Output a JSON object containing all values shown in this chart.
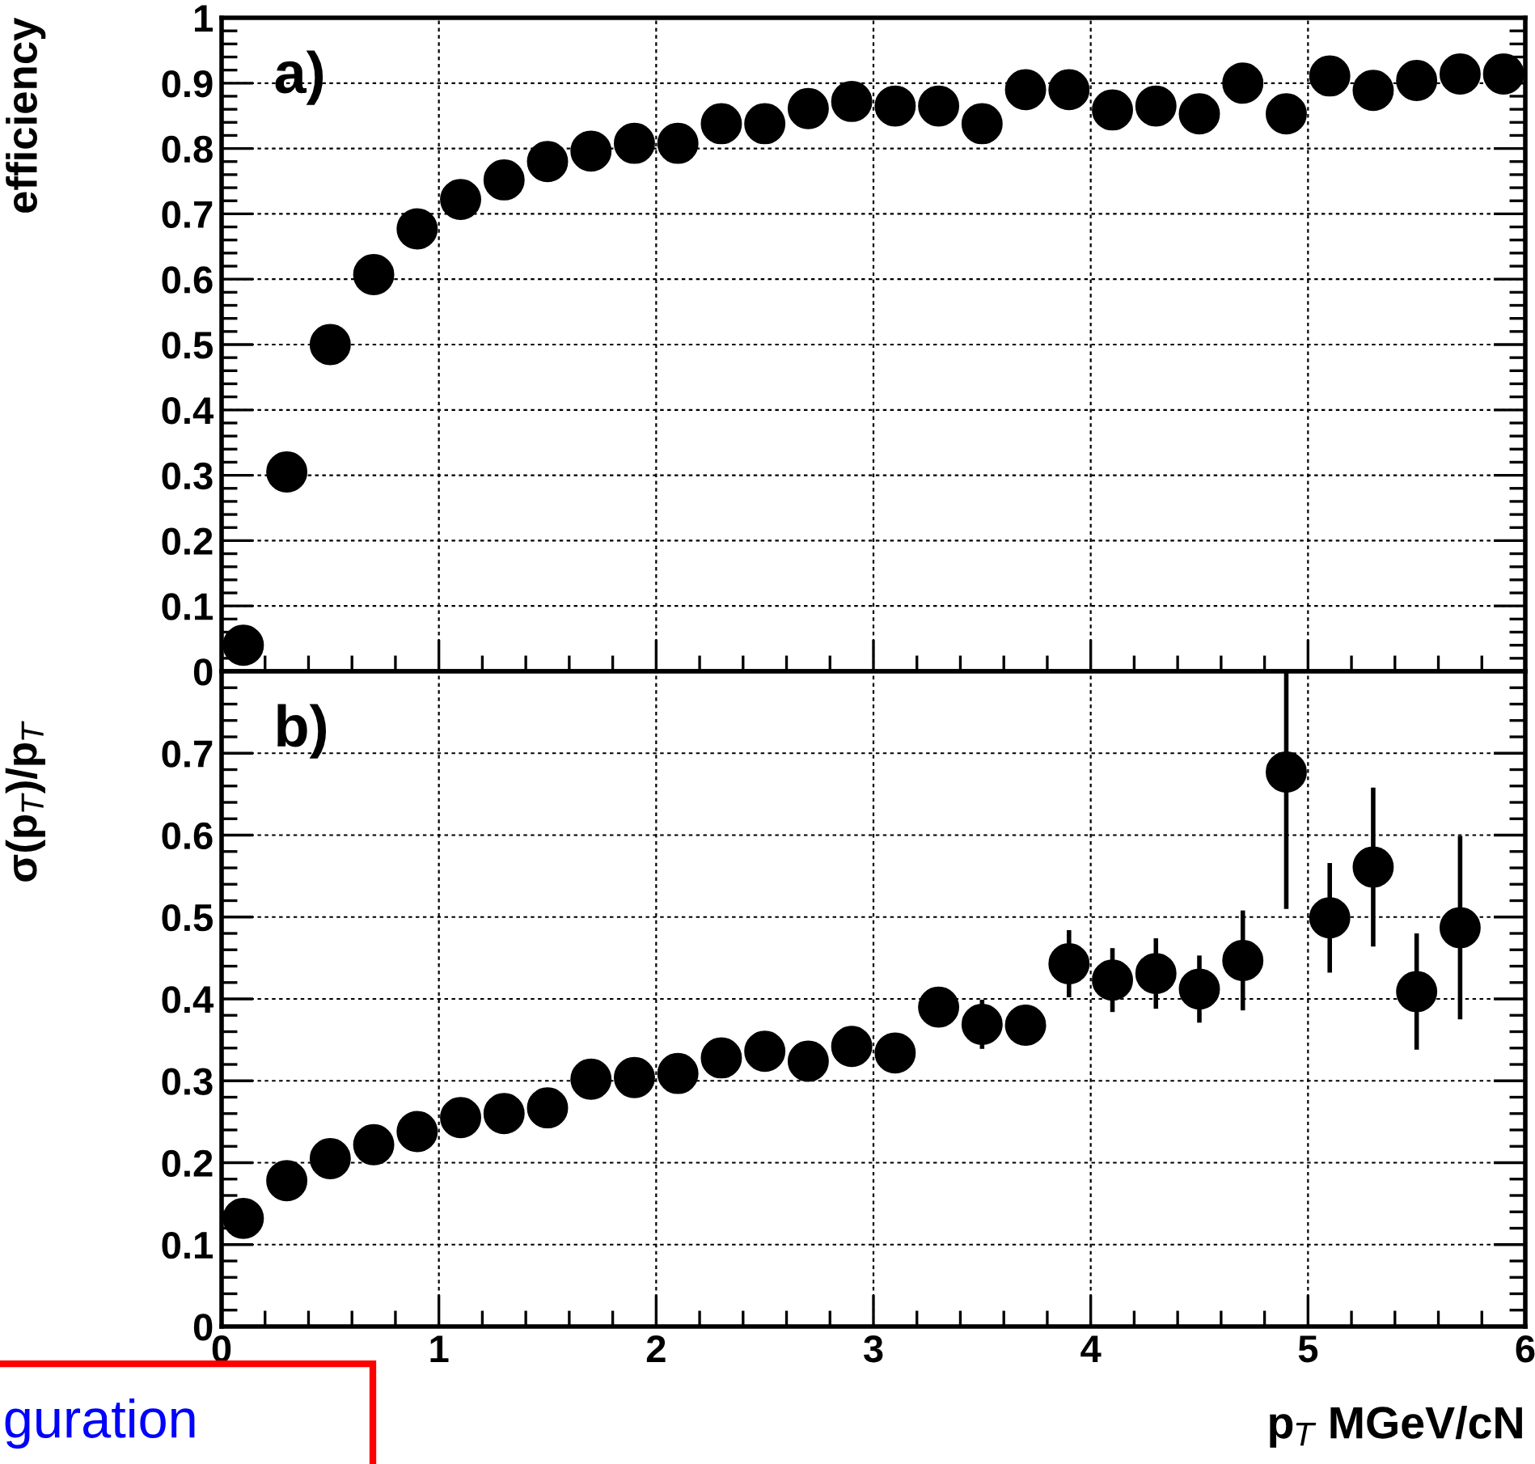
{
  "chart_data": [
    {
      "type": "scatter",
      "ylabel": "efficiency",
      "annotations": [
        "a)"
      ],
      "marker": "circle",
      "grid": true,
      "tick_labels": "y",
      "xlim": [
        0,
        6
      ],
      "xticks": [
        0,
        1,
        2,
        3,
        4,
        5,
        6
      ],
      "ylim": [
        0,
        1
      ],
      "yticks": [
        0,
        0.1,
        0.2,
        0.3,
        0.4,
        0.5,
        0.6,
        0.7,
        0.8,
        0.9,
        1
      ],
      "x": [
        0.1,
        0.3,
        0.5,
        0.7,
        0.9,
        1.1,
        1.3,
        1.5,
        1.7,
        1.9,
        2.1,
        2.3,
        2.5,
        2.7,
        2.9,
        3.1,
        3.3,
        3.5,
        3.7,
        3.9,
        4.1,
        4.3,
        4.5,
        4.7,
        4.9,
        5.1,
        5.3,
        5.5,
        5.7,
        5.9
      ],
      "series": [
        {
          "color": "#000000",
          "values": [
            0.04,
            0.305,
            0.5,
            0.607,
            0.677,
            0.722,
            0.752,
            0.78,
            0.796,
            0.808,
            0.808,
            0.838,
            0.838,
            0.861,
            0.872,
            0.865,
            0.865,
            0.838,
            0.89,
            0.89,
            0.859,
            0.865,
            0.853,
            0.9,
            0.853,
            0.911,
            0.889,
            0.904,
            0.914,
            0.914
          ],
          "errors": [
            null,
            null,
            null,
            null,
            null,
            null,
            null,
            null,
            null,
            null,
            null,
            null,
            null,
            null,
            null,
            null,
            null,
            null,
            null,
            null,
            null,
            null,
            0.02,
            0.02,
            0.025,
            0.015,
            0.025,
            0.02,
            0.02,
            0.025
          ]
        }
      ]
    },
    {
      "type": "scatter",
      "xlabel": "p$_{T}$ MGeV/cN",
      "ylabel": "σ(p$_{T}$)/p$_{T}$",
      "annotations": [
        "b)",
        "guration"
      ],
      "marker": "circle",
      "grid": true,
      "xlim": [
        0,
        6
      ],
      "xticks": [
        0,
        1,
        2,
        3,
        4,
        5,
        6
      ],
      "ylim": [
        0,
        0.8
      ],
      "yticks": [
        0,
        0.1,
        0.2,
        0.3,
        0.4,
        0.5,
        0.6,
        0.7,
        {
          "value": 0.8,
          "label": null
        }
      ],
      "x": [
        0.1,
        0.3,
        0.5,
        0.7,
        0.9,
        1.1,
        1.3,
        1.5,
        1.7,
        1.9,
        2.1,
        2.3,
        2.5,
        2.7,
        2.9,
        3.1,
        3.3,
        3.5,
        3.7,
        3.9,
        4.1,
        4.3,
        4.5,
        4.7,
        4.9,
        5.1,
        5.3,
        5.5,
        5.7
      ],
      "series": [
        {
          "color": "#000000",
          "values": [
            0.132,
            0.178,
            0.205,
            0.222,
            0.238,
            0.255,
            0.26,
            0.267,
            0.302,
            0.304,
            0.309,
            0.328,
            0.336,
            0.324,
            0.342,
            0.334,
            0.39,
            0.369,
            0.368,
            0.443,
            0.423,
            0.431,
            0.412,
            0.447,
            0.677,
            0.499,
            0.561,
            0.409,
            0.487
          ],
          "errors": [
            null,
            null,
            null,
            null,
            null,
            null,
            null,
            null,
            null,
            null,
            null,
            null,
            null,
            null,
            null,
            null,
            0.022,
            0.03,
            0.025,
            0.041,
            0.039,
            0.043,
            0.041,
            0.061,
            [
              0.51,
              0.8
            ],
            0.067,
            0.097,
            0.071,
            0.112
          ]
        }
      ]
    }
  ]
}
